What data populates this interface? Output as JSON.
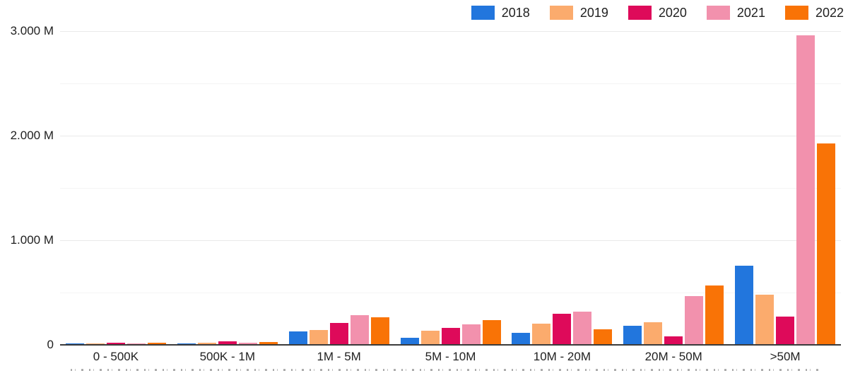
{
  "chart_data": {
    "type": "bar",
    "title": "",
    "xlabel": "",
    "ylabel": "",
    "unit": "M",
    "ylim": [
      0,
      3000
    ],
    "grid": true,
    "legend_position": "top-right",
    "categories": [
      "0 - 500K",
      "500K - 1M",
      "1M - 5M",
      "5M - 10M",
      "10M - 20M",
      "20M - 50M",
      ">50M"
    ],
    "series": [
      {
        "name": "2018",
        "color": "#2276dd",
        "values": [
          8,
          10,
          125,
          70,
          115,
          180,
          760
        ]
      },
      {
        "name": "2019",
        "color": "#fbab6d",
        "values": [
          12,
          18,
          140,
          135,
          200,
          215,
          480
        ]
      },
      {
        "name": "2020",
        "color": "#de0a5a",
        "values": [
          18,
          33,
          210,
          165,
          295,
          80,
          270
        ]
      },
      {
        "name": "2021",
        "color": "#f291ad",
        "values": [
          15,
          20,
          285,
          195,
          320,
          465,
          2960
        ]
      },
      {
        "name": "2022",
        "color": "#f97306",
        "values": [
          18,
          25,
          265,
          235,
          150,
          565,
          1925
        ]
      }
    ],
    "y_ticks": [
      {
        "value": 0,
        "label": "0"
      },
      {
        "value": 1000,
        "label": "1.000 M"
      },
      {
        "value": 2000,
        "label": "2.000 M"
      },
      {
        "value": 3000,
        "label": "3.000 M"
      }
    ],
    "y_minor_ticks": [
      500,
      1500,
      2500
    ]
  }
}
